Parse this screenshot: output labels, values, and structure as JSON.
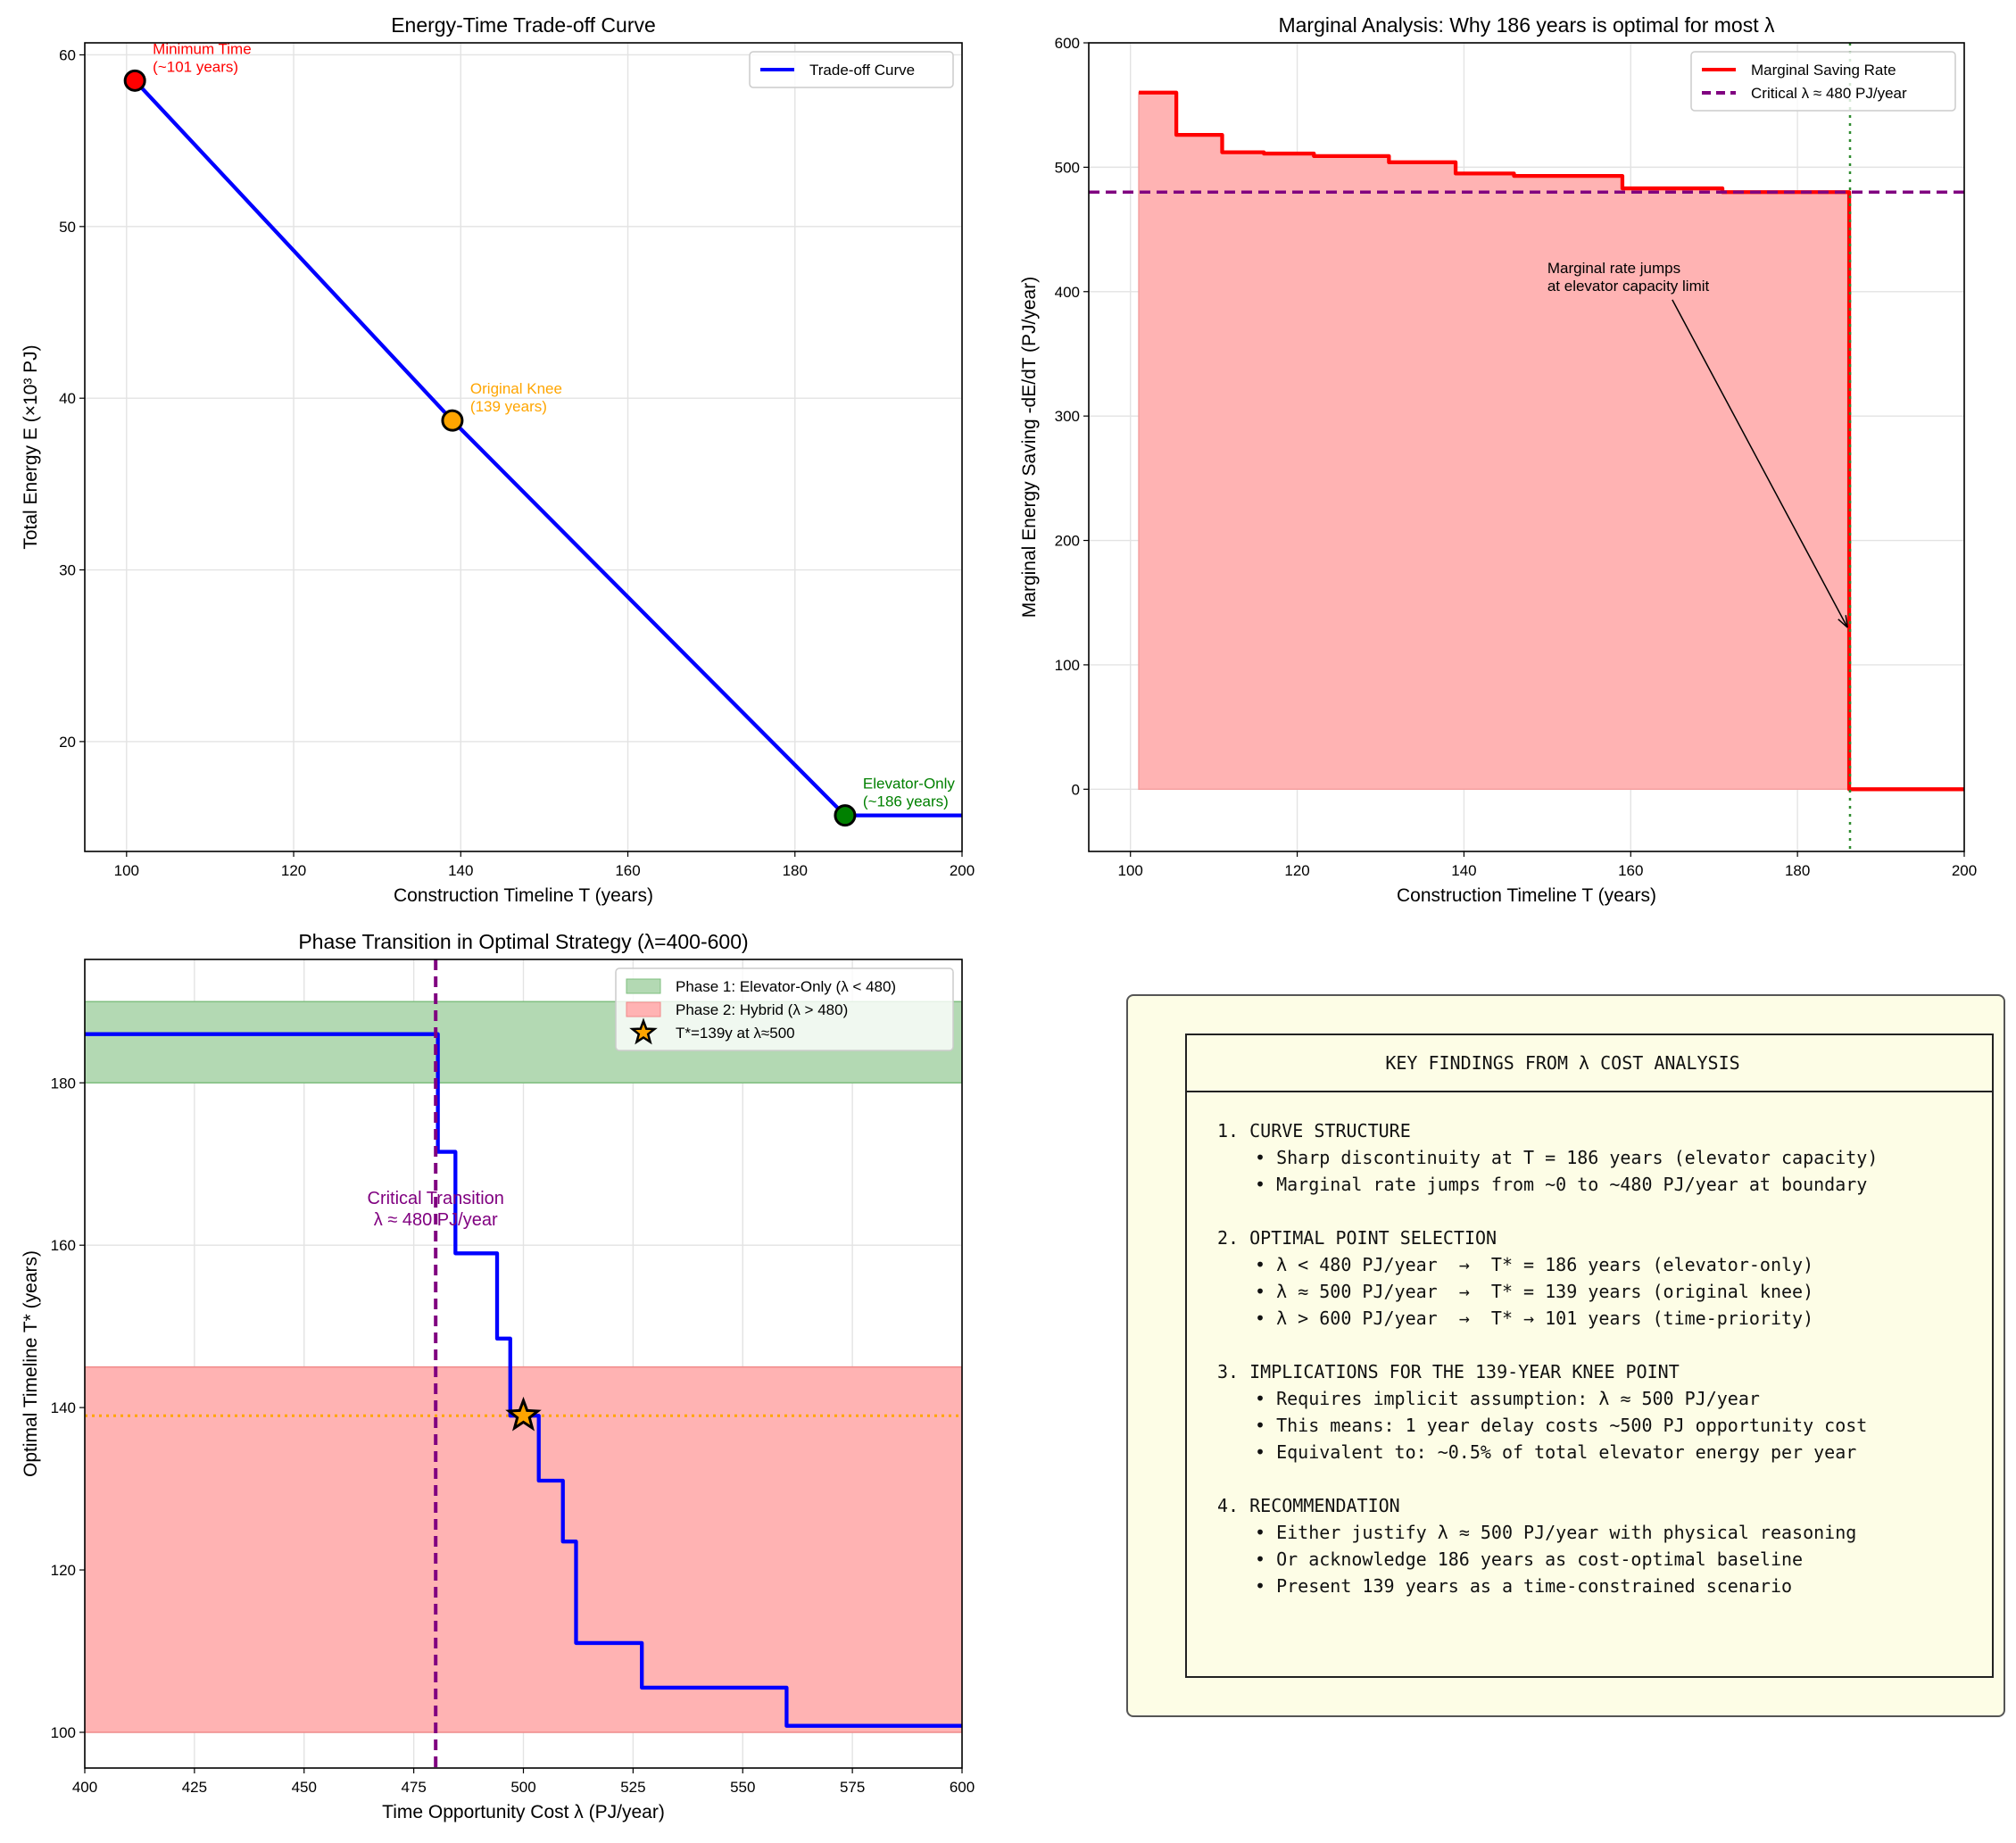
{
  "chart_data": [
    {
      "type": "line",
      "title": "Energy-Time Trade-off Curve",
      "xlabel": "Construction Timeline T (years)",
      "ylabel": "Total Energy E (×10³ PJ)",
      "xlim": [
        95,
        200
      ],
      "ylim": [
        13.6,
        60.7
      ],
      "xticks": [
        100,
        120,
        140,
        160,
        180,
        200
      ],
      "yticks": [
        20,
        30,
        40,
        50,
        60
      ],
      "grid": true,
      "legend": "top-right",
      "series": [
        {
          "name": "Trade-off Curve",
          "color": "#0000ff",
          "x": [
            101,
            139,
            186,
            200
          ],
          "y": [
            58.5,
            38.7,
            15.7,
            15.7
          ]
        }
      ],
      "points": [
        {
          "x": 101,
          "y": 58.5,
          "color": "#ff0000",
          "label": [
            "Minimum Time",
            "(~101 years)"
          ]
        },
        {
          "x": 139,
          "y": 38.7,
          "color": "#ffa500",
          "label": [
            "Original Knee",
            "(139 years)"
          ]
        },
        {
          "x": 186,
          "y": 15.7,
          "color": "#008000",
          "label": [
            "Elevator-Only",
            "(~186 years)"
          ]
        }
      ]
    },
    {
      "type": "area",
      "title": "Marginal Analysis: Why 186 years is optimal for most λ",
      "xlabel": "Construction Timeline T (years)",
      "ylabel": "Marginal Energy Saving -dE/dT (PJ/year)",
      "xlim": [
        95,
        200
      ],
      "ylim": [
        -50,
        600
      ],
      "xticks": [
        100,
        120,
        140,
        160,
        180,
        200
      ],
      "yticks": [
        0,
        100,
        200,
        300,
        400,
        500,
        600
      ],
      "grid": true,
      "legend": "top-right",
      "series": [
        {
          "name": "Marginal Saving Rate",
          "color": "#ff0000",
          "fill": "#ffb3b3",
          "drawstyle": "steps-post",
          "x": [
            101,
            105.5,
            111,
            116,
            122,
            131,
            139,
            146,
            159,
            171,
            186.2,
            200
          ],
          "y": [
            560,
            526,
            512,
            511,
            509,
            504,
            495,
            493,
            483,
            480,
            0,
            0
          ]
        }
      ],
      "hline": {
        "name": "Critical λ ≈ 480 PJ/year",
        "y": 480,
        "color": "#800080"
      },
      "vline": {
        "x": 186.3,
        "color": "#2e8b2e"
      },
      "annotation": {
        "text": [
          "Marginal rate jumps",
          "at elevator capacity limit"
        ],
        "xy": [
          186,
          130
        ],
        "xytext": [
          150,
          415
        ]
      }
    },
    {
      "type": "line",
      "title": "Phase Transition in Optimal Strategy (λ=400-600)",
      "xlabel": "Time Opportunity Cost λ (PJ/year)",
      "ylabel": "Optimal Timeline T* (years)",
      "xlim": [
        400,
        600
      ],
      "ylim": [
        95.6,
        195.2
      ],
      "xticks": [
        400,
        425,
        450,
        475,
        500,
        525,
        550,
        575,
        600
      ],
      "yticks": [
        100,
        120,
        140,
        160,
        180
      ],
      "grid": true,
      "legend": "top-right",
      "bands": [
        {
          "name": "Phase 1: Elevator-Only (λ < 480)",
          "y0": 180,
          "y1": 190,
          "color": "#b3d9b3",
          "edge": "#7fbf7f"
        },
        {
          "name": "Phase 2: Hybrid (λ > 480)",
          "y0": 100,
          "y1": 145,
          "color": "#ffb3b3",
          "edge": "#f08a8a"
        }
      ],
      "series": [
        {
          "color": "#0000ff",
          "drawstyle": "steps-post",
          "x": [
            400,
            480.5,
            484.5,
            494,
            497,
            503.5,
            509,
            512,
            527,
            560,
            600
          ],
          "y": [
            186,
            171.5,
            159,
            148.5,
            139,
            131,
            123.5,
            111,
            105.5,
            100.8,
            100.8
          ]
        }
      ],
      "hline": {
        "y": 139,
        "color": "#ffa500"
      },
      "vline": {
        "x": 480,
        "color": "#800080"
      },
      "marker": {
        "name": "T*=139y at λ≈500",
        "x": 500,
        "y": 139,
        "color": "#ffa500"
      },
      "annotation": {
        "text": [
          "Critical Transition",
          "λ ≈ 480 PJ/year"
        ],
        "color": "#800080"
      }
    }
  ],
  "findings": {
    "title": "KEY FINDINGS FROM λ COST ANALYSIS",
    "sections": [
      {
        "heading": "1. CURVE STRUCTURE",
        "bullets": [
          "• Sharp discontinuity at T = 186 years (elevator capacity)",
          "• Marginal rate jumps from ~0 to ~480 PJ/year at boundary"
        ]
      },
      {
        "heading": "2. OPTIMAL POINT SELECTION",
        "bullets": [
          "• λ < 480 PJ/year  →  T* = 186 years (elevator-only)",
          "• λ ≈ 500 PJ/year  →  T* = 139 years (original knee)",
          "• λ > 600 PJ/year  →  T* → 101 years (time-priority)"
        ]
      },
      {
        "heading": "3. IMPLICATIONS FOR THE 139-YEAR KNEE POINT",
        "bullets": [
          "• Requires implicit assumption: λ ≈ 500 PJ/year",
          "• This means: 1 year delay costs ~500 PJ opportunity cost",
          "• Equivalent to: ~0.5% of total elevator energy per year"
        ]
      },
      {
        "heading": "4. RECOMMENDATION",
        "bullets": [
          "• Either justify λ ≈ 500 PJ/year with physical reasoning",
          "• Or acknowledge 186 years as cost-optimal baseline",
          "• Present 139 years as a time-constrained scenario"
        ]
      }
    ]
  }
}
